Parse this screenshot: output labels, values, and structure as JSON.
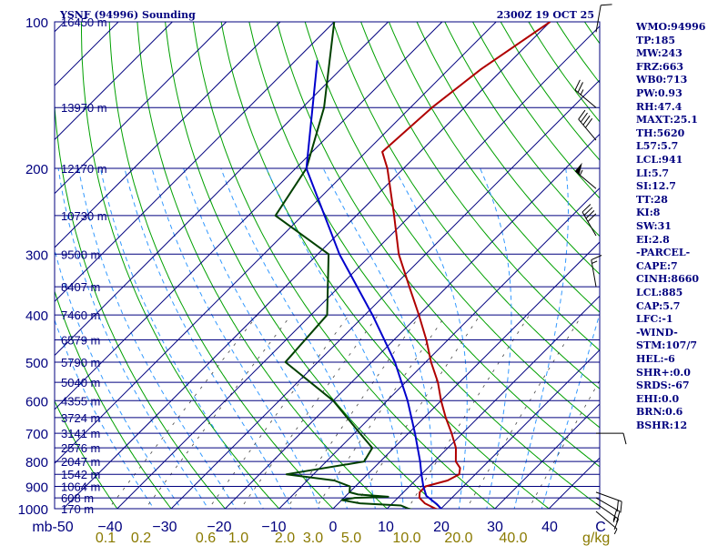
{
  "chart_data": {
    "type": "line",
    "title": "YSNF (94996) Sounding",
    "valid_time": "2300Z 19 OCT 25",
    "y_unit_label": "mb",
    "temp_unit_label": "C",
    "mixing_ratio_unit_label": "g/kg",
    "ylim": [
      1000,
      100
    ],
    "y_scale": "log-pressure",
    "xlim": [
      -50,
      50
    ],
    "pressure_ticks": [
      100,
      200,
      300,
      400,
      500,
      600,
      700,
      800,
      900,
      1000
    ],
    "temperature_ticks": [
      -50,
      -40,
      -30,
      -20,
      -10,
      0,
      10,
      20,
      30,
      40,
      50
    ],
    "temperature_tick_labels": [
      "mb-50",
      "−40",
      "−30",
      "−20",
      "−10",
      "0",
      "10",
      "20",
      "30",
      "40",
      "C"
    ],
    "mixing_ratio_labels": [
      {
        "text": "0.1",
        "w": 0.1
      },
      {
        "text": "0.2",
        "w": 0.2
      },
      {
        "text": "0.6",
        "w": 0.6
      },
      {
        "text": "1.0",
        "w": 1.0
      },
      {
        "text": "2.0",
        "w": 2.0
      },
      {
        "text": "3.0",
        "w": 3.0
      },
      {
        "text": "5.0",
        "w": 5.0
      },
      {
        "text": "10.0",
        "w": 10.0
      },
      {
        "text": "20.0",
        "w": 20.0
      },
      {
        "text": "40.0",
        "w": 40.0
      }
    ],
    "height_labels": [
      {
        "p": 100,
        "text": "16450 m"
      },
      {
        "p": 150,
        "text": "13970 m"
      },
      {
        "p": 200,
        "text": "12170 m"
      },
      {
        "p": 250,
        "text": "10730 m"
      },
      {
        "p": 300,
        "text": "9500 m"
      },
      {
        "p": 350,
        "text": "8407 m"
      },
      {
        "p": 400,
        "text": "7460 m"
      },
      {
        "p": 450,
        "text": "6579 m"
      },
      {
        "p": 500,
        "text": "5790 m"
      },
      {
        "p": 550,
        "text": "5040 m"
      },
      {
        "p": 600,
        "text": "4355 m"
      },
      {
        "p": 650,
        "text": "3724 m"
      },
      {
        "p": 700,
        "text": "3141 m"
      },
      {
        "p": 750,
        "text": "2576 m"
      },
      {
        "p": 800,
        "text": "2047 m"
      },
      {
        "p": 850,
        "text": "1542 m"
      },
      {
        "p": 900,
        "text": "1064 m"
      },
      {
        "p": 950,
        "text": "608 m"
      },
      {
        "p": 1000,
        "text": "170 m"
      }
    ],
    "series": [
      {
        "key": "temperature",
        "color": "#b00000",
        "points": [
          {
            "p": 1013,
            "t": 21.0
          },
          {
            "p": 1000,
            "t": 19.0
          },
          {
            "p": 975,
            "t": 16.0
          },
          {
            "p": 950,
            "t": 14.0
          },
          {
            "p": 925,
            "t": 13.0
          },
          {
            "p": 900,
            "t": 13.0
          },
          {
            "p": 875,
            "t": 16.0
          },
          {
            "p": 850,
            "t": 17.0
          },
          {
            "p": 825,
            "t": 16.0
          },
          {
            "p": 800,
            "t": 14.0
          },
          {
            "p": 750,
            "t": 11.5
          },
          {
            "p": 700,
            "t": 8.0
          },
          {
            "p": 650,
            "t": 4.0
          },
          {
            "p": 600,
            "t": 0.0
          },
          {
            "p": 550,
            "t": -4.0
          },
          {
            "p": 500,
            "t": -9.0
          },
          {
            "p": 450,
            "t": -14.0
          },
          {
            "p": 400,
            "t": -20.0
          },
          {
            "p": 350,
            "t": -27.0
          },
          {
            "p": 300,
            "t": -35.0
          },
          {
            "p": 250,
            "t": -43.0
          },
          {
            "p": 200,
            "t": -53.0
          },
          {
            "p": 185,
            "t": -57.0
          },
          {
            "p": 150,
            "t": -56.0
          },
          {
            "p": 125,
            "t": -54.0
          },
          {
            "p": 100,
            "t": -50.0
          }
        ]
      },
      {
        "key": "dewpoint",
        "color": "#004000",
        "points": [
          {
            "p": 1013,
            "t": 17.0
          },
          {
            "p": 1000,
            "t": 14.0
          },
          {
            "p": 985,
            "t": 12.0
          },
          {
            "p": 975,
            "t": 4.0
          },
          {
            "p": 960,
            "t": 0.0
          },
          {
            "p": 950,
            "t": 2.0
          },
          {
            "p": 945,
            "t": 8.0
          },
          {
            "p": 935,
            "t": 2.0
          },
          {
            "p": 925,
            "t": 0.0
          },
          {
            "p": 900,
            "t": -1.0
          },
          {
            "p": 875,
            "t": -5.0
          },
          {
            "p": 850,
            "t": -15.0
          },
          {
            "p": 800,
            "t": -3.0
          },
          {
            "p": 750,
            "t": -4.0
          },
          {
            "p": 700,
            "t": -9.0
          },
          {
            "p": 600,
            "t": -20.0
          },
          {
            "p": 500,
            "t": -36.0
          },
          {
            "p": 400,
            "t": -37.0
          },
          {
            "p": 300,
            "t": -48.0
          },
          {
            "p": 250,
            "t": -65.0
          },
          {
            "p": 200,
            "t": -68.0
          },
          {
            "p": 150,
            "t": -76.0
          },
          {
            "p": 100,
            "t": -90.0
          }
        ]
      },
      {
        "key": "parcel",
        "color": "#0000cc",
        "points": [
          {
            "p": 1013,
            "t": 21.0
          },
          {
            "p": 980,
            "t": 18.5
          },
          {
            "p": 941,
            "t": 14.9
          },
          {
            "p": 900,
            "t": 12.6
          },
          {
            "p": 850,
            "t": 10.0
          },
          {
            "p": 800,
            "t": 7.4
          },
          {
            "p": 700,
            "t": 1.2
          },
          {
            "p": 600,
            "t": -6.2
          },
          {
            "p": 500,
            "t": -15.7
          },
          {
            "p": 400,
            "t": -28.6
          },
          {
            "p": 300,
            "t": -46.0
          },
          {
            "p": 200,
            "t": -68.0
          },
          {
            "p": 120,
            "t": -86.0
          }
        ]
      }
    ],
    "wind_barbs": [
      {
        "p": 1013,
        "dir": 130,
        "spd": 5
      },
      {
        "p": 975,
        "dir": 125,
        "spd": 15
      },
      {
        "p": 950,
        "dir": 120,
        "spd": 20
      },
      {
        "p": 925,
        "dir": 110,
        "spd": 20
      },
      {
        "p": 700,
        "dir": 90,
        "spd": 10
      },
      {
        "p": 350,
        "dir": 350,
        "spd": 15
      },
      {
        "p": 275,
        "dir": 330,
        "spd": 40
      },
      {
        "p": 220,
        "dir": 310,
        "spd": 55
      },
      {
        "p": 175,
        "dir": 320,
        "spd": 40
      },
      {
        "p": 150,
        "dir": 310,
        "spd": 25
      },
      {
        "p": 105,
        "dir": 10,
        "spd": 10
      }
    ]
  },
  "indices": [
    "WMO:94996",
    "TP:185",
    "MW:243",
    "FRZ:663",
    "WB0:713",
    "PW:0.93",
    "RH:47.4",
    "MAXT:25.1",
    "TH:5620",
    "L57:5.7",
    "LCL:941",
    "LI:5.7",
    "SI:12.7",
    "TT:28",
    "KI:8",
    "SW:31",
    "EI:2.8",
    "-PARCEL-",
    "CAPE:7",
    "CINH:8660",
    "LCL:885",
    "CAP:5.7",
    "LFC:-1",
    "-WIND-",
    "STM:107/7",
    "HEL:-6",
    "SHR+:0.0",
    "SRDS:-67",
    "EHI:0.0",
    "BRN:0.6",
    "BSHR:12"
  ],
  "colors": {
    "isobar": "#00007f",
    "isotherm": "#00007f",
    "dry_adiabat": "#00a000",
    "moist_adiabat": "#3399ff",
    "mixing_ratio": "#444444",
    "mixing_ratio_label": "#8a7a00",
    "background": "#ffffff",
    "text": "#00007f"
  }
}
